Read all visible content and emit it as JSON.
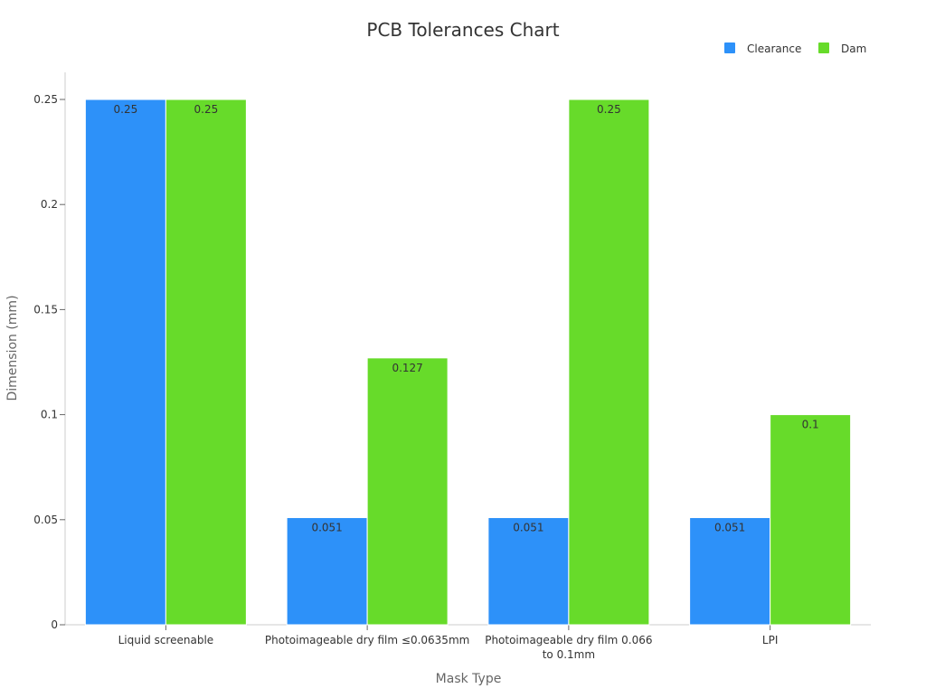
{
  "chart_data": {
    "type": "bar",
    "title": "PCB Tolerances Chart",
    "xlabel": "Mask Type",
    "ylabel": "Dimension (mm)",
    "categories": [
      [
        "Liquid screenable"
      ],
      [
        "Photoimageable dry film ≤0.0635mm"
      ],
      [
        "Photoimageable dry film 0.066",
        "to 0.1mm"
      ],
      [
        "LPI"
      ]
    ],
    "series": [
      {
        "name": "Clearance",
        "color": "#2d91f9",
        "values": [
          0.25,
          0.051,
          0.051,
          0.051
        ]
      },
      {
        "name": "Dam",
        "color": "#67db2a",
        "values": [
          0.25,
          0.127,
          0.25,
          0.1
        ]
      }
    ],
    "ylim": [
      0,
      0.25
    ],
    "yticks": [
      0,
      0.05,
      0.1,
      0.15,
      0.2,
      0.25
    ],
    "ytick_labels": [
      "0",
      "0.05",
      "0.1",
      "0.15",
      "0.2",
      "0.25"
    ],
    "legend_position": "top-right",
    "grid": false
  }
}
